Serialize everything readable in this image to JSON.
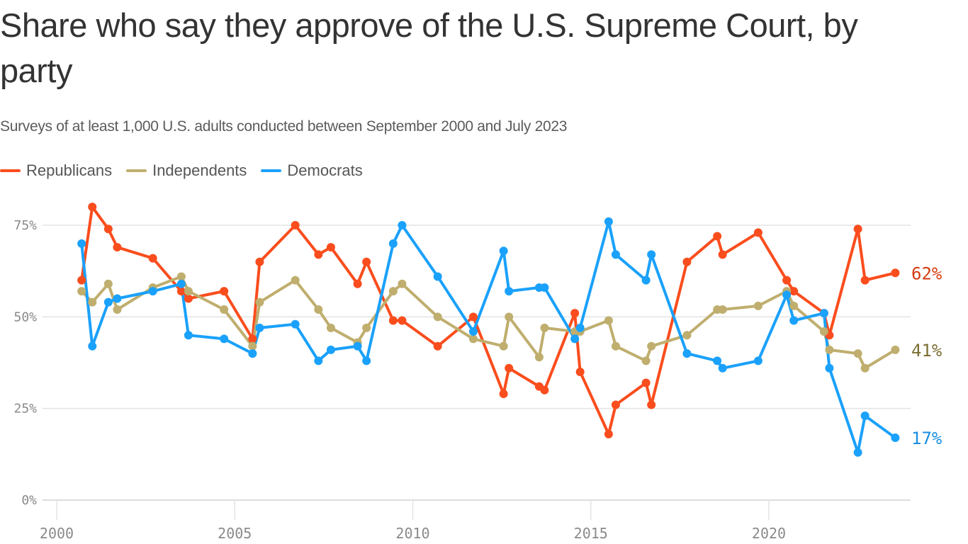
{
  "chart_data": {
    "type": "line",
    "title": "Share who say they approve of the U.S. Supreme Court, by party",
    "subtitle": "Surveys of at least 1,000 U.S. adults conducted between September 2000 and July 2023",
    "xlabel": "",
    "ylabel": "",
    "xlim": [
      2000,
      2024
    ],
    "ylim": [
      0,
      80
    ],
    "x_ticks": [
      2000,
      2005,
      2010,
      2015,
      2020
    ],
    "x_tick_labels": [
      "2000",
      "2005",
      "2010",
      "2015",
      "2020"
    ],
    "y_ticks": [
      0,
      25,
      50,
      75
    ],
    "y_tick_labels": [
      "0%",
      "25%",
      "50%",
      "75%"
    ],
    "grid": true,
    "legend_position": "top-left",
    "x": [
      2000.7,
      2001.0,
      2001.45,
      2001.7,
      2002.7,
      2003.5,
      2003.7,
      2004.7,
      2005.5,
      2005.7,
      2006.7,
      2007.35,
      2007.7,
      2008.45,
      2008.7,
      2009.45,
      2009.7,
      2010.7,
      2011.7,
      2012.55,
      2012.7,
      2013.55,
      2013.7,
      2014.55,
      2014.7,
      2015.5,
      2015.7,
      2016.55,
      2016.7,
      2017.7,
      2018.55,
      2018.7,
      2019.7,
      2020.5,
      2020.7,
      2021.55,
      2021.7,
      2022.5,
      2022.7,
      2023.55
    ],
    "series": [
      {
        "name": "Republicans",
        "color": "#fa4d1d",
        "label_color": "#d63a10",
        "end_label": "62%",
        "values": [
          60,
          80,
          74,
          69,
          66,
          57,
          55,
          57,
          44,
          65,
          75,
          67,
          69,
          59,
          65,
          49,
          49,
          42,
          50,
          29,
          36,
          31,
          30,
          51,
          35,
          18,
          26,
          32,
          26,
          65,
          72,
          67,
          73,
          60,
          57,
          51,
          45,
          74,
          60,
          62
        ]
      },
      {
        "name": "Independents",
        "color": "#bfae6e",
        "label_color": "#7d6e33",
        "end_label": "41%",
        "values": [
          57,
          54,
          59,
          52,
          58,
          61,
          57,
          52,
          42,
          54,
          60,
          52,
          47,
          43,
          47,
          57,
          59,
          50,
          44,
          42,
          50,
          39,
          47,
          46,
          46,
          49,
          42,
          38,
          42,
          45,
          52,
          52,
          53,
          57,
          53,
          46,
          41,
          40,
          36,
          41
        ]
      },
      {
        "name": "Democrats",
        "color": "#1aa1fb",
        "label_color": "#1a8fe0",
        "end_label": "17%",
        "values": [
          70,
          42,
          54,
          55,
          57,
          59,
          45,
          44,
          40,
          47,
          48,
          38,
          41,
          42,
          38,
          70,
          75,
          61,
          46,
          68,
          57,
          58,
          58,
          44,
          47,
          76,
          67,
          60,
          67,
          40,
          38,
          36,
          38,
          56,
          49,
          51,
          36,
          13,
          23,
          17
        ]
      }
    ]
  }
}
